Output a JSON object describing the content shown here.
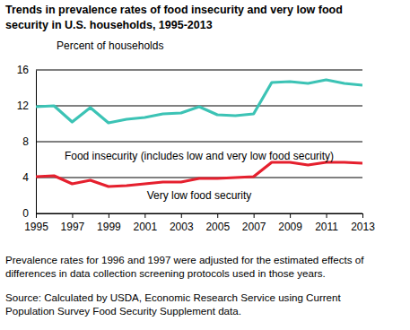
{
  "chart_data": {
    "type": "line",
    "title": [
      "Trends in prevalence rates of food insecurity and very low food",
      "security in U.S. households, 1995-2013"
    ],
    "y_label": "Percent of households",
    "x": [
      1995,
      1996,
      1997,
      1998,
      1999,
      2000,
      2001,
      2002,
      2003,
      2004,
      2005,
      2006,
      2007,
      2008,
      2009,
      2010,
      2011,
      2012,
      2013
    ],
    "series": [
      {
        "name": "Food insecurity (includes low and very low food security)",
        "color": "#3cc3b5",
        "values": [
          11.9,
          12.0,
          10.2,
          11.8,
          10.1,
          10.5,
          10.7,
          11.1,
          11.2,
          11.9,
          11.0,
          10.9,
          11.1,
          14.6,
          14.7,
          14.5,
          14.9,
          14.5,
          14.3
        ]
      },
      {
        "name": "Very low food security",
        "color": "#e5202e",
        "values": [
          4.1,
          4.2,
          3.3,
          3.7,
          3.0,
          3.1,
          3.3,
          3.5,
          3.5,
          3.9,
          3.9,
          4.0,
          4.1,
          5.7,
          5.7,
          5.4,
          5.7,
          5.7,
          5.6
        ]
      }
    ],
    "xlim": [
      1995,
      2013
    ],
    "xticks": [
      1995,
      1997,
      1999,
      2001,
      2003,
      2005,
      2007,
      2009,
      2011,
      2013
    ],
    "ylim": [
      0,
      16
    ],
    "yticks": [
      0,
      4,
      8,
      12,
      16
    ],
    "grid": true,
    "footnote": [
      "Prevalence rates for 1996 and 1997 were adjusted for the estimated effects of",
      "differences in data collection screening protocols used in those years."
    ],
    "source": [
      "Source: Calculated by USDA, Economic Research Service using Current",
      "Population Survey Food Security Supplement data."
    ]
  }
}
